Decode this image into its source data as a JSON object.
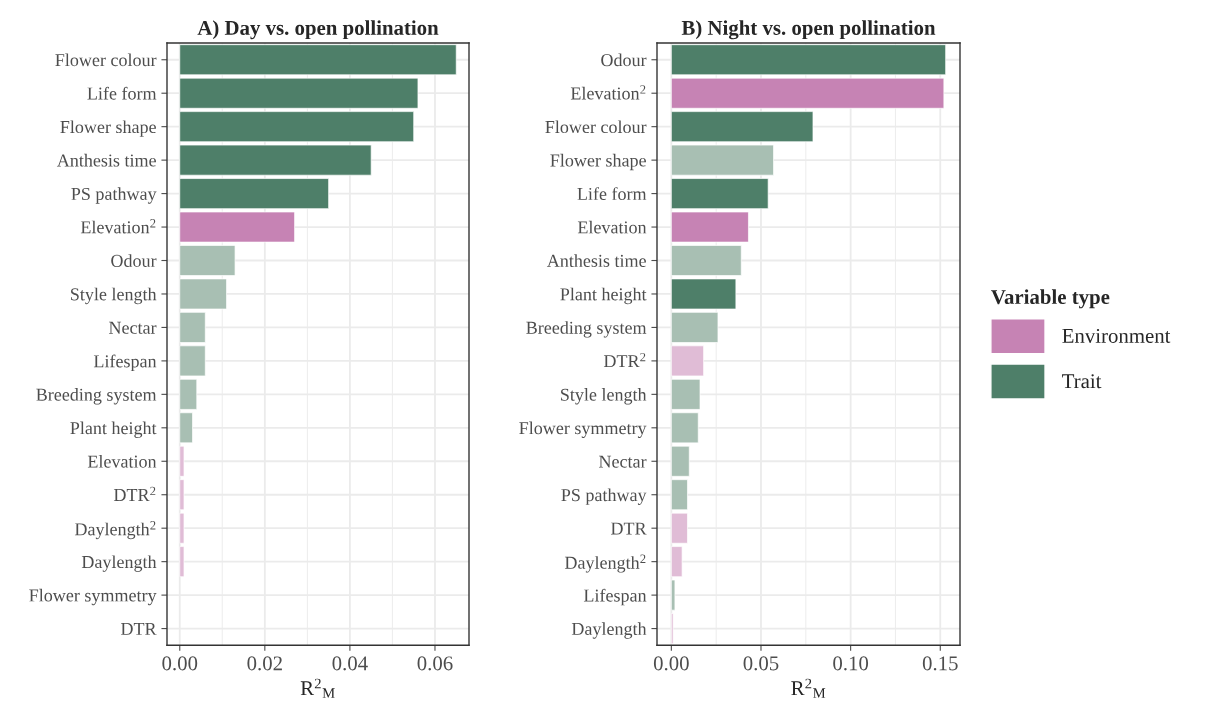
{
  "chart_data": [
    {
      "type": "bar",
      "orientation": "horizontal",
      "title": "A) Day vs. open pollination",
      "xlabel": "R$^{2}$$_{M}$",
      "categories": [
        "Flower colour",
        "Life form",
        "Flower shape",
        "Anthesis time",
        "PS pathway",
        "Elevation$^{2}$",
        "Odour",
        "Style length",
        "Nectar",
        "Lifespan",
        "Breeding system",
        "Plant height",
        "Elevation",
        "DTR$^{2}$",
        "Daylength$^{2}$",
        "Daylength",
        "Flower symmetry",
        "DTR"
      ],
      "series": [
        {
          "values": [
            null,
            null,
            null,
            null,
            null,
            0.027,
            null,
            null,
            null,
            null,
            null,
            null,
            0.001,
            0.001,
            0.001,
            0.001,
            null,
            null
          ],
          "colors": [
            null,
            null,
            null,
            null,
            null,
            "#c683b4",
            null,
            null,
            null,
            null,
            null,
            null,
            "#e0bcd6",
            "#e0bcd6",
            "#e0bcd6",
            "#e0bcd6",
            null,
            null
          ]
        },
        {
          "values": [
            0.065,
            0.056,
            0.055,
            0.045,
            0.035,
            null,
            0.013,
            0.011,
            0.006,
            0.006,
            0.004,
            0.003,
            null,
            null,
            null,
            null,
            null,
            null
          ],
          "colors": [
            "#4e7f69",
            "#4e7f69",
            "#4e7f69",
            "#4e7f69",
            "#4e7f69",
            null,
            "#a8bfb3",
            "#a8bfb3",
            "#a8bfb3",
            "#a8bfb3",
            "#a8bfb3",
            "#a8bfb3",
            null,
            null,
            null,
            null,
            null,
            null
          ]
        }
      ],
      "xlim": [
        -0.003,
        0.068
      ],
      "xticks": [
        {
          "value": 0,
          "label": "0.00"
        },
        0.02,
        0.04,
        0.06
      ],
      "grid": true
    },
    {
      "type": "bar",
      "orientation": "horizontal",
      "title": "B) Night vs. open pollination",
      "xlabel": "R$^{2}$$_{M}$",
      "legend": "right",
      "legend_title": "Variable type",
      "categories": [
        "Odour",
        "Elevation$^{2}$",
        "Flower colour",
        "Flower shape",
        "Life form",
        "Elevation",
        "Anthesis time",
        "Plant height",
        "Breeding system",
        "DTR$^{2}$",
        "Style length",
        "Flower symmetry",
        "Nectar",
        "PS pathway",
        "DTR",
        "Daylength$^{2}$",
        "Lifespan",
        "Daylength"
      ],
      "series": [
        {
          "name": "Environment",
          "color": "#c683b4",
          "values": [
            null,
            0.152,
            null,
            null,
            null,
            0.043,
            null,
            null,
            null,
            0.018,
            null,
            null,
            null,
            null,
            0.009,
            0.006,
            null,
            0.001
          ],
          "colors": [
            null,
            "#c683b4",
            null,
            null,
            null,
            "#c683b4",
            null,
            null,
            null,
            "#e0bcd6",
            null,
            null,
            null,
            null,
            "#e0bcd6",
            "#e0bcd6",
            null,
            "#e0bcd6"
          ]
        },
        {
          "name": "Trait",
          "color": "#4e7f69",
          "values": [
            0.153,
            null,
            0.079,
            0.057,
            0.054,
            null,
            0.039,
            0.036,
            0.026,
            null,
            0.016,
            0.015,
            0.01,
            0.009,
            null,
            null,
            0.002,
            null
          ],
          "colors": [
            "#4e7f69",
            null,
            "#4e7f69",
            "#a8bfb3",
            "#4e7f69",
            null,
            "#a8bfb3",
            "#4e7f69",
            "#a8bfb3",
            null,
            "#a8bfb3",
            "#a8bfb3",
            "#a8bfb3",
            "#a8bfb3",
            null,
            null,
            "#a8bfb3",
            null
          ]
        }
      ],
      "xlim": [
        -0.008,
        0.161
      ],
      "xticks": [
        {
          "value": 0,
          "label": "0.00"
        },
        {
          "value": 0.05,
          "label": "0.05"
        },
        {
          "value": 0.1,
          "label": "0.10"
        },
        0.15
      ],
      "grid": true
    }
  ]
}
